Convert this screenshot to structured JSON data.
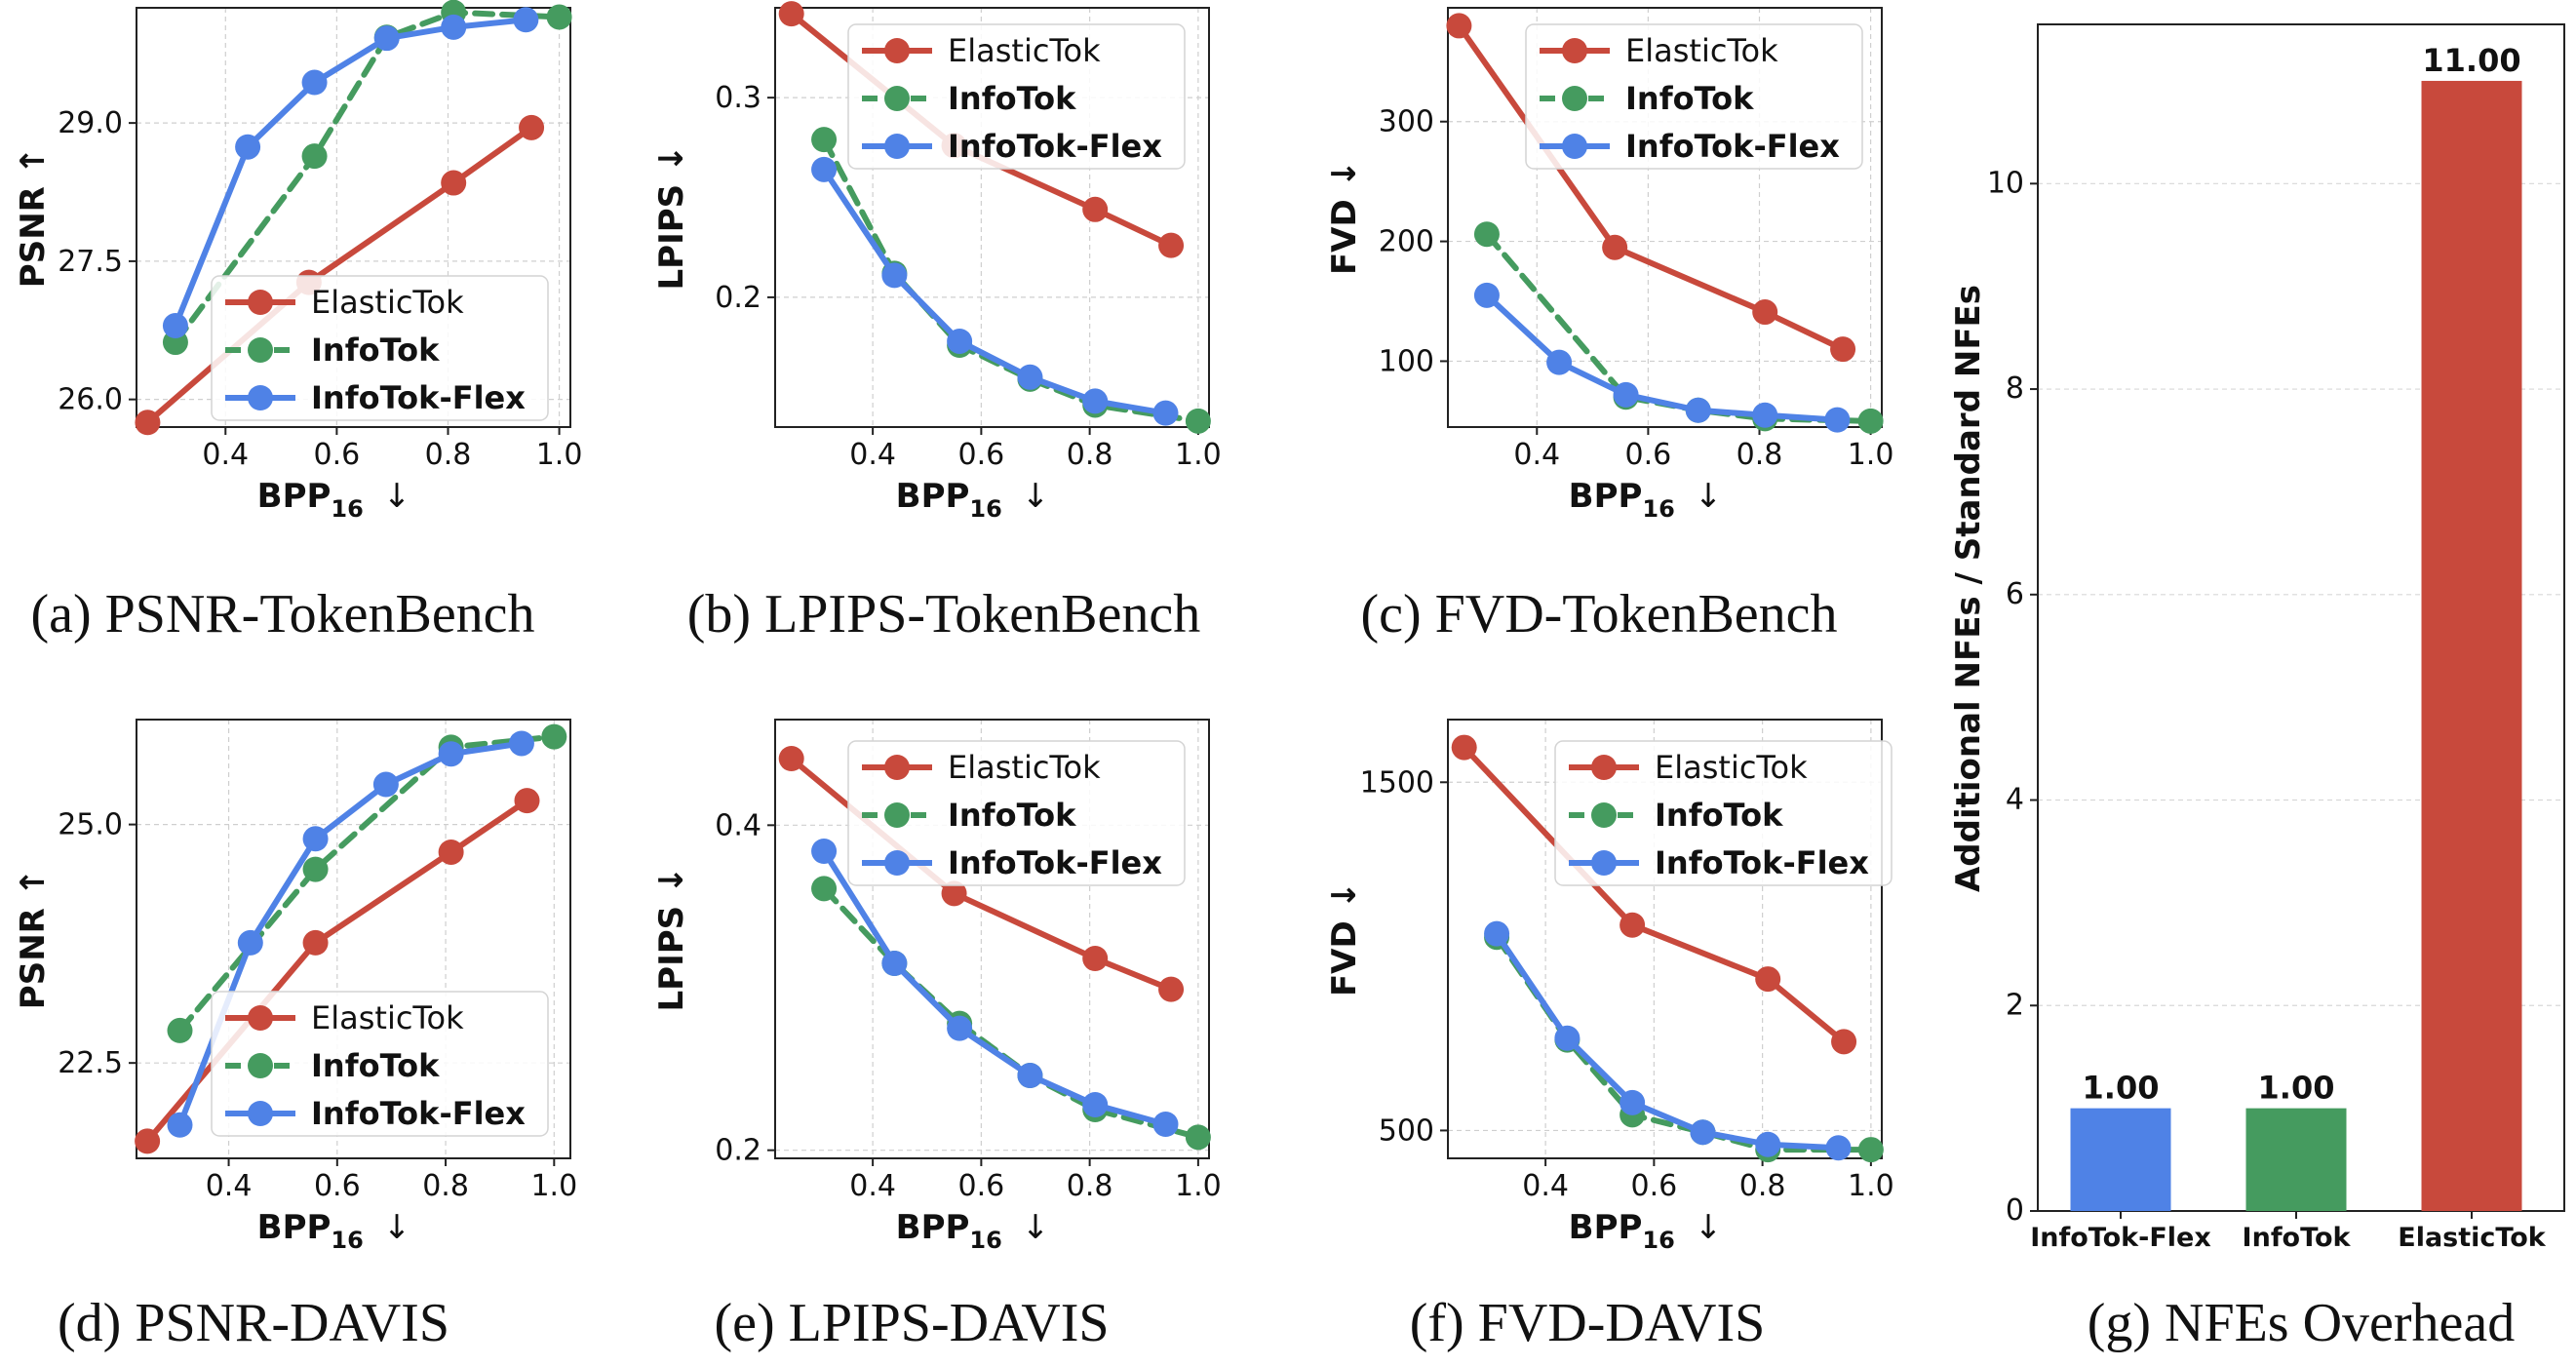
{
  "colors": {
    "ElasticTok": "#c8493c",
    "InfoTok": "#459b5f",
    "InfoTok-Flex": "#4f82e6"
  },
  "chart_data": [
    {
      "id": "a",
      "type": "line",
      "caption": "(a) PSNR-TokenBench",
      "xlabel": "BPP",
      "xlabel_sub": "16",
      "xlabel_arrow": "↓",
      "ylabel": "PSNR ↑",
      "xlim": [
        0.24,
        1.02
      ],
      "ylim": [
        25.7,
        30.25
      ],
      "xticks": [
        0.4,
        0.6,
        0.8,
        1.0
      ],
      "xtick_labels": [
        "0.4",
        "0.6",
        "0.8",
        "1.0"
      ],
      "yticks": [
        26.0,
        27.5,
        29.0
      ],
      "ytick_labels": [
        "26.0",
        "27.5",
        "29.0"
      ],
      "legend": "lower-right",
      "grid": true,
      "series": [
        {
          "name": "ElasticTok",
          "x": [
            0.26,
            0.55,
            0.81,
            0.95
          ],
          "y": [
            25.75,
            27.27,
            28.35,
            28.95
          ]
        },
        {
          "name": "InfoTok",
          "x": [
            0.31,
            0.56,
            0.69,
            0.81,
            1.0
          ],
          "y": [
            26.62,
            28.64,
            29.93,
            30.2,
            30.15
          ]
        },
        {
          "name": "InfoTok-Flex",
          "x": [
            0.31,
            0.44,
            0.56,
            0.69,
            0.81,
            0.94
          ],
          "y": [
            26.8,
            28.74,
            29.44,
            29.92,
            30.04,
            30.12
          ]
        }
      ]
    },
    {
      "id": "b",
      "type": "line",
      "caption": "(b) LPIPS-TokenBench",
      "xlabel": "BPP",
      "xlabel_sub": "16",
      "xlabel_arrow": "↓",
      "ylabel": "LPIPS ↓",
      "xlim": [
        0.22,
        1.02
      ],
      "ylim": [
        0.135,
        0.345
      ],
      "xticks": [
        0.4,
        0.6,
        0.8,
        1.0
      ],
      "xtick_labels": [
        "0.4",
        "0.6",
        "0.8",
        "1.0"
      ],
      "yticks": [
        0.2,
        0.3
      ],
      "ytick_labels": [
        "0.2",
        "0.3"
      ],
      "legend": "upper-right",
      "grid": true,
      "series": [
        {
          "name": "ElasticTok",
          "x": [
            0.25,
            0.55,
            0.81,
            0.95
          ],
          "y": [
            0.342,
            0.276,
            0.244,
            0.226
          ]
        },
        {
          "name": "InfoTok",
          "x": [
            0.31,
            0.44,
            0.56,
            0.69,
            0.81,
            1.0
          ],
          "y": [
            0.279,
            0.212,
            0.176,
            0.159,
            0.146,
            0.138
          ]
        },
        {
          "name": "InfoTok-Flex",
          "x": [
            0.31,
            0.44,
            0.56,
            0.69,
            0.81,
            0.94
          ],
          "y": [
            0.264,
            0.211,
            0.178,
            0.16,
            0.148,
            0.142
          ]
        }
      ]
    },
    {
      "id": "c",
      "type": "line",
      "caption": "(c) FVD-TokenBench",
      "xlabel": "BPP",
      "xlabel_sub": "16",
      "xlabel_arrow": "↓",
      "ylabel": "FVD ↓",
      "xlim": [
        0.24,
        1.02
      ],
      "ylim": [
        45,
        395
      ],
      "xticks": [
        0.4,
        0.6,
        0.8,
        1.0
      ],
      "xtick_labels": [
        "0.4",
        "0.6",
        "0.8",
        "1.0"
      ],
      "yticks": [
        100,
        200,
        300
      ],
      "ytick_labels": [
        "100",
        "200",
        "300"
      ],
      "legend": "upper-right",
      "grid": true,
      "series": [
        {
          "name": "ElasticTok",
          "x": [
            0.26,
            0.54,
            0.81,
            0.95
          ],
          "y": [
            380,
            195,
            141,
            110
          ]
        },
        {
          "name": "InfoTok",
          "x": [
            0.31,
            0.56,
            0.69,
            0.81,
            1.0
          ],
          "y": [
            206,
            70,
            59,
            52,
            50
          ]
        },
        {
          "name": "InfoTok-Flex",
          "x": [
            0.31,
            0.44,
            0.56,
            0.69,
            0.81,
            0.94
          ],
          "y": [
            155,
            99,
            72,
            59,
            55,
            51
          ]
        }
      ]
    },
    {
      "id": "d",
      "type": "line",
      "caption": "(d) PSNR-DAVIS",
      "xlabel": "BPP",
      "xlabel_sub": "16",
      "xlabel_arrow": "↓",
      "ylabel": "PSNR ↑",
      "xlim": [
        0.23,
        1.03
      ],
      "ylim": [
        21.5,
        26.1
      ],
      "xticks": [
        0.4,
        0.6,
        0.8,
        1.0
      ],
      "xtick_labels": [
        "0.4",
        "0.6",
        "0.8",
        "1.0"
      ],
      "yticks": [
        22.5,
        25.0
      ],
      "ytick_labels": [
        "22.5",
        "25.0"
      ],
      "legend": "lower-right",
      "grid": true,
      "series": [
        {
          "name": "ElasticTok",
          "x": [
            0.25,
            0.56,
            0.81,
            0.95
          ],
          "y": [
            21.68,
            23.76,
            24.71,
            25.25
          ]
        },
        {
          "name": "InfoTok",
          "x": [
            0.31,
            0.56,
            0.81,
            1.0
          ],
          "y": [
            22.84,
            24.53,
            25.81,
            25.92
          ]
        },
        {
          "name": "InfoTok-Flex",
          "x": [
            0.31,
            0.44,
            0.56,
            0.69,
            0.81,
            0.94
          ],
          "y": [
            21.85,
            23.76,
            24.85,
            25.42,
            25.74,
            25.85
          ]
        }
      ]
    },
    {
      "id": "e",
      "type": "line",
      "caption": "(e) LPIPS-DAVIS",
      "xlabel": "BPP",
      "xlabel_sub": "16",
      "xlabel_arrow": "↓",
      "ylabel": "LPIPS ↓",
      "xlim": [
        0.22,
        1.02
      ],
      "ylim": [
        0.195,
        0.465
      ],
      "xticks": [
        0.4,
        0.6,
        0.8,
        1.0
      ],
      "xtick_labels": [
        "0.4",
        "0.6",
        "0.8",
        "1.0"
      ],
      "yticks": [
        0.2,
        0.4
      ],
      "ytick_labels": [
        "0.2",
        "0.4"
      ],
      "legend": "upper-right",
      "grid": true,
      "series": [
        {
          "name": "ElasticTok",
          "x": [
            0.25,
            0.55,
            0.81,
            0.95
          ],
          "y": [
            0.441,
            0.358,
            0.318,
            0.299
          ]
        },
        {
          "name": "InfoTok",
          "x": [
            0.31,
            0.44,
            0.56,
            0.69,
            0.81,
            1.0
          ],
          "y": [
            0.361,
            0.315,
            0.278,
            0.246,
            0.225,
            0.208
          ]
        },
        {
          "name": "InfoTok-Flex",
          "x": [
            0.31,
            0.44,
            0.56,
            0.69,
            0.81,
            0.94
          ],
          "y": [
            0.384,
            0.315,
            0.275,
            0.246,
            0.228,
            0.216
          ]
        }
      ]
    },
    {
      "id": "f",
      "type": "line",
      "caption": "(f) FVD-DAVIS",
      "xlabel": "BPP",
      "xlabel_sub": "16",
      "xlabel_arrow": "↓",
      "ylabel": "FVD ↓",
      "xlim": [
        0.22,
        1.02
      ],
      "ylim": [
        420,
        1680
      ],
      "xticks": [
        0.4,
        0.6,
        0.8,
        1.0
      ],
      "xtick_labels": [
        "0.4",
        "0.6",
        "0.8",
        "1.0"
      ],
      "yticks": [
        500,
        1500
      ],
      "ytick_labels": [
        "500",
        "1500"
      ],
      "legend": "upper-right",
      "grid": true,
      "series": [
        {
          "name": "ElasticTok",
          "x": [
            0.25,
            0.56,
            0.81,
            0.95
          ],
          "y": [
            1600,
            1090,
            935,
            755
          ]
        },
        {
          "name": "InfoTok",
          "x": [
            0.31,
            0.44,
            0.56,
            0.69,
            0.81,
            1.0
          ],
          "y": [
            1055,
            760,
            545,
            495,
            445,
            445
          ]
        },
        {
          "name": "InfoTok-Flex",
          "x": [
            0.31,
            0.44,
            0.56,
            0.69,
            0.81,
            0.94
          ],
          "y": [
            1065,
            765,
            580,
            495,
            460,
            450
          ]
        }
      ]
    },
    {
      "id": "g",
      "type": "bar",
      "caption": "(g) NFEs Overhead",
      "ylabel": "Additional NFEs / Standard NFEs",
      "categories": [
        "InfoTok-Flex",
        "InfoTok",
        "ElasticTok"
      ],
      "values": [
        1.0,
        1.0,
        11.0
      ],
      "value_labels": [
        "1.00",
        "1.00",
        "11.00"
      ],
      "ylim": [
        0,
        11.55
      ],
      "yticks": [
        0,
        2,
        4,
        6,
        8,
        10
      ],
      "ytick_labels": [
        "0",
        "2",
        "4",
        "6",
        "8",
        "10"
      ],
      "grid": true
    }
  ]
}
